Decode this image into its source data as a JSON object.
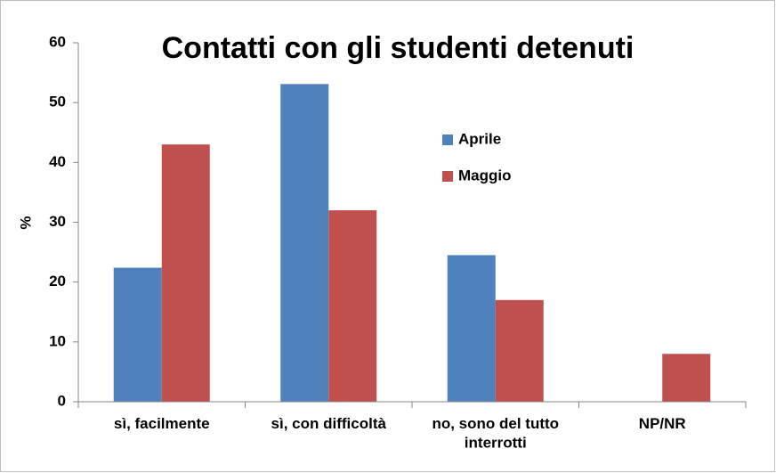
{
  "chart_data": {
    "type": "bar",
    "title": "Contatti con gli studenti detenuti",
    "ylabel": "%",
    "categories": [
      "sì, facilmente",
      "sì, con difficoltà",
      "no, sono del tutto interrotti",
      "NP/NR"
    ],
    "series": [
      {
        "name": "Aprile",
        "color": "#4f81bd",
        "values": [
          22.4,
          53.1,
          24.5,
          0
        ]
      },
      {
        "name": "Maggio",
        "color": "#c0504d",
        "values": [
          43,
          32,
          17,
          8
        ]
      }
    ],
    "ylim": [
      0,
      60
    ],
    "yticks": [
      0,
      10,
      20,
      30,
      40,
      50,
      60
    ],
    "grid": false,
    "legend": "right"
  }
}
